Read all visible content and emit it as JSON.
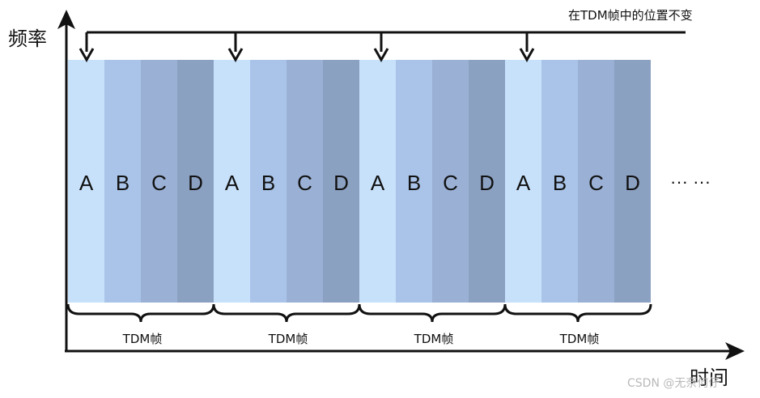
{
  "axes": {
    "y_label": "频率",
    "x_label": "时间"
  },
  "note": "在TDM帧中的位置不变",
  "slot_letters": [
    "A",
    "B",
    "C",
    "D"
  ],
  "slot_colors": [
    "#c8e1fb",
    "#a9c4e8",
    "#9ab1d5",
    "#8ba1c2"
  ],
  "frames": [
    {
      "label": "TDM帧"
    },
    {
      "label": "TDM帧"
    },
    {
      "label": "TDM帧"
    },
    {
      "label": "TDM帧"
    }
  ],
  "ellipsis": "··· ···",
  "watermark": "CSDN @无奈何仔"
}
